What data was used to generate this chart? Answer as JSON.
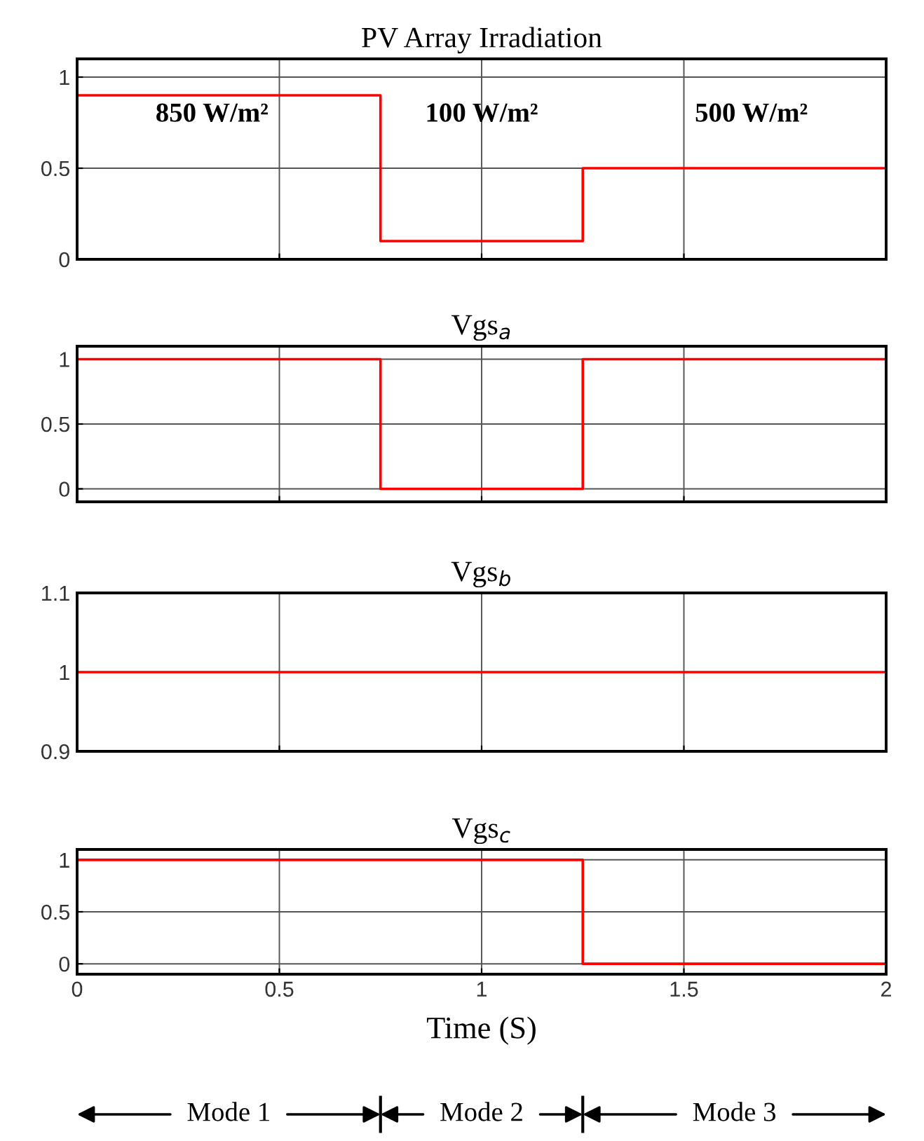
{
  "chart_data": [
    {
      "type": "step",
      "title": "PV Array Irradiation",
      "x": [
        0,
        0.75,
        1.25,
        2
      ],
      "series": [
        {
          "color": "#ff0000",
          "values": [
            0.9,
            0.1,
            0.5,
            0.5
          ]
        }
      ],
      "xlim": [
        0,
        2
      ],
      "xticks": [
        0,
        0.5,
        1,
        1.5,
        2
      ],
      "ylim": [
        0,
        1.1
      ],
      "yticks": [
        0,
        0.5,
        1
      ],
      "grid": true,
      "tick_labels": "y",
      "annotations": [
        "850 W/m²",
        "100 W/m²",
        "500 W/m²"
      ]
    },
    {
      "type": "step",
      "title": "Vgs$_{a}$",
      "x": [
        0,
        0.75,
        1.25,
        2
      ],
      "series": [
        {
          "color": "#ff0000",
          "values": [
            1,
            0,
            1,
            1
          ]
        }
      ],
      "xlim": [
        0,
        2
      ],
      "xticks": [
        0,
        0.5,
        1,
        1.5,
        2
      ],
      "ylim": [
        -0.1,
        1.1
      ],
      "yticks": [
        0,
        0.5,
        1
      ],
      "grid": true,
      "tick_labels": "y"
    },
    {
      "type": "step",
      "title": "Vgs$_{b}$",
      "x": [
        0,
        2
      ],
      "series": [
        {
          "color": "#ff0000",
          "values": [
            1,
            1
          ]
        }
      ],
      "xlim": [
        0,
        2
      ],
      "xticks": [
        0,
        0.5,
        1,
        1.5,
        2
      ],
      "ylim": [
        0.9,
        1.1
      ],
      "yticks": [
        0.9,
        1,
        1.1
      ],
      "grid": true,
      "tick_labels": "y"
    },
    {
      "type": "step",
      "title": "Vgs$_{c}$",
      "xlabel": "Time (S)",
      "x": [
        0,
        1.25,
        2
      ],
      "series": [
        {
          "color": "#ff0000",
          "values": [
            1,
            0,
            0
          ]
        }
      ],
      "xlim": [
        0,
        2
      ],
      "xticks": [
        0,
        0.5,
        1,
        1.5,
        2
      ],
      "ylim": [
        -0.1,
        1.1
      ],
      "yticks": [
        0,
        0.5,
        1
      ],
      "grid": true,
      "annotations": [
        "Mode 1",
        "Mode 2",
        "Mode 3"
      ]
    }
  ]
}
